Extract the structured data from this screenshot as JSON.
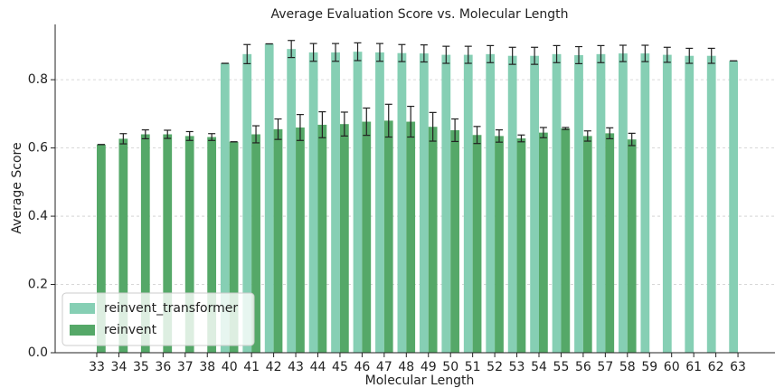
{
  "chart_data": {
    "type": "bar",
    "title": "Average Evaluation Score vs. Molecular Length",
    "x_label": "Molecular Length",
    "y_label": "Average Score",
    "categories": [
      "33",
      "34",
      "35",
      "36",
      "37",
      "38",
      "40",
      "41",
      "42",
      "43",
      "44",
      "45",
      "46",
      "47",
      "48",
      "49",
      "50",
      "51",
      "52",
      "53",
      "54",
      "55",
      "56",
      "57",
      "58",
      "59",
      "60",
      "61",
      "62",
      "63"
    ],
    "series": [
      {
        "name": "reinvent_transformer",
        "color": "#86cfb4",
        "values": [
          null,
          null,
          null,
          null,
          null,
          null,
          0.848,
          0.875,
          0.905,
          0.89,
          0.88,
          0.88,
          0.882,
          0.88,
          0.878,
          0.877,
          0.873,
          0.873,
          0.875,
          0.87,
          0.87,
          0.875,
          0.872,
          0.875,
          0.877,
          0.877,
          0.873,
          0.87,
          0.87,
          0.855
        ],
        "errors": [
          null,
          null,
          null,
          null,
          null,
          null,
          0,
          0.028,
          0,
          0.025,
          0.026,
          0.026,
          0.026,
          0.026,
          0.025,
          0.025,
          0.025,
          0.025,
          0.025,
          0.025,
          0.025,
          0.025,
          0.025,
          0.025,
          0.024,
          0.024,
          0.022,
          0.022,
          0.022,
          0
        ]
      },
      {
        "name": "reinvent",
        "color": "#55a868",
        "values": [
          0.61,
          0.627,
          0.64,
          0.64,
          0.635,
          0.632,
          0.618,
          0.64,
          0.655,
          0.66,
          0.668,
          0.67,
          0.677,
          0.68,
          0.677,
          0.662,
          0.652,
          0.638,
          0.635,
          0.628,
          0.645,
          0.657,
          0.635,
          0.643,
          0.625,
          null,
          null,
          null,
          null,
          null
        ],
        "errors": [
          0,
          0.015,
          0.013,
          0.012,
          0.013,
          0.01,
          0,
          0.025,
          0.03,
          0.038,
          0.038,
          0.035,
          0.04,
          0.048,
          0.045,
          0.042,
          0.033,
          0.025,
          0.018,
          0.01,
          0.015,
          0.003,
          0.015,
          0.016,
          0.018,
          null,
          null,
          null,
          null,
          null
        ]
      }
    ],
    "ylim": [
      0,
      0.962
    ],
    "yticks": [
      {
        "value": 0,
        "label": "0.0"
      },
      {
        "value": 0.2,
        "label": "0.2"
      },
      {
        "value": 0.4,
        "label": "0.4"
      },
      {
        "value": 0.6,
        "label": "0.6"
      },
      {
        "value": 0.8,
        "label": "0.8"
      }
    ],
    "grid": true,
    "legend": "lower left"
  }
}
